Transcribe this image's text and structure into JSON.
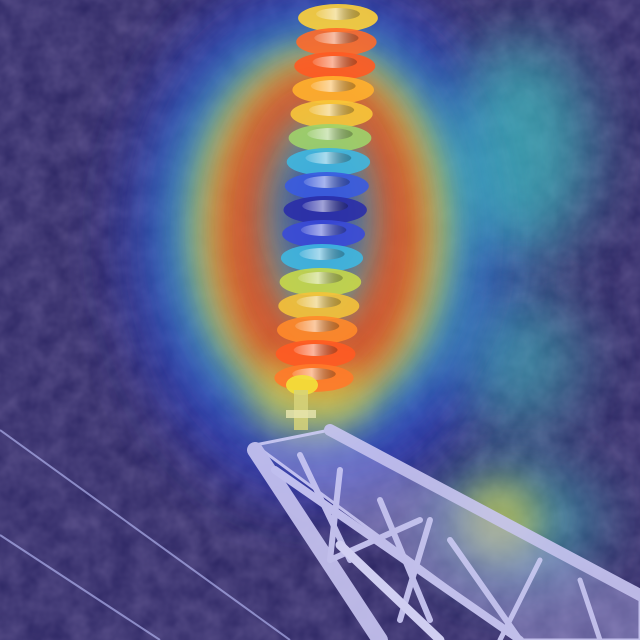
{
  "scene": {
    "subject": "insulator-string",
    "overlay": "attention-heatmap",
    "disc_count": 16,
    "colors": {
      "base": "#2a2360",
      "vegetation": "#3b2f6e",
      "heat_low": "#2a3bd6",
      "heat_mid": "#3fd1c8",
      "heat_warm": "#f2e23a",
      "heat_high": "#e8401e",
      "disc_top": "#ffcc33",
      "disc_mid": "#2a2ea8",
      "tower": "#c9c6f2"
    }
  }
}
